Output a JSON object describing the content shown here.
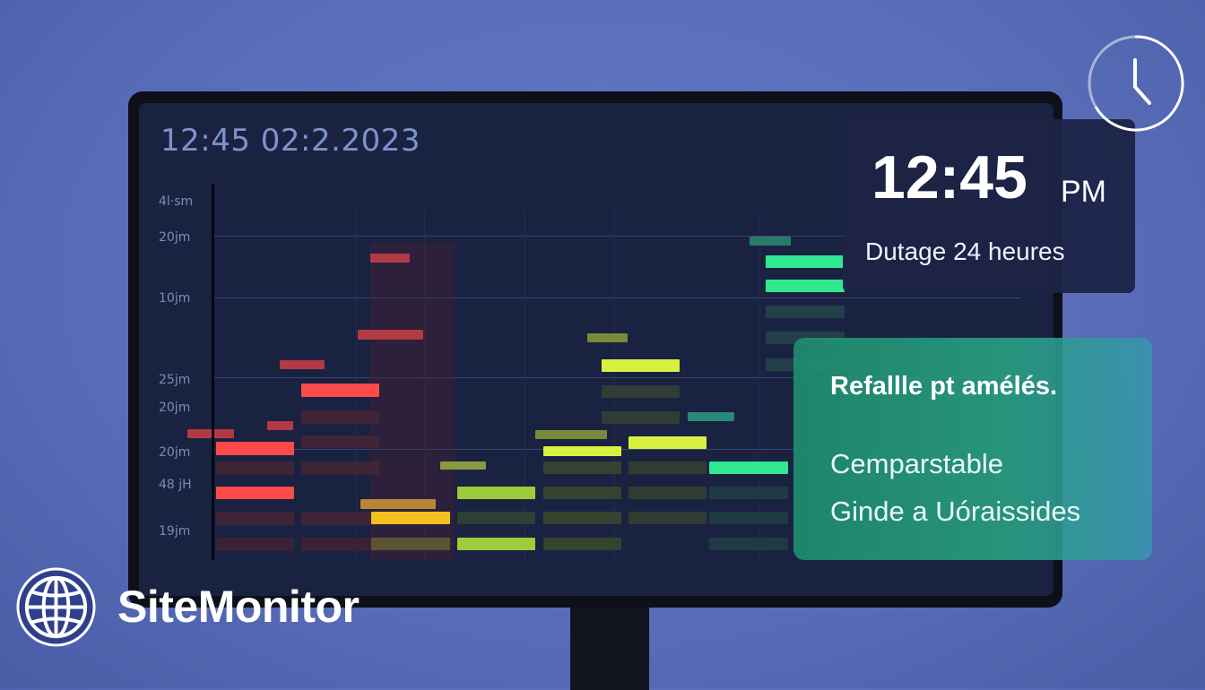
{
  "brand": {
    "name": "SiteMonitor",
    "logo_icon": "globe-icon"
  },
  "screen": {
    "title": "12:45  02:2.2023",
    "y_ticks": [
      "4l·sm",
      "20jm",
      "10jm",
      "25jm",
      "20jm",
      "20jm",
      "48 jH",
      "19jm"
    ]
  },
  "time_card": {
    "time": "12:45",
    "ampm": "PM",
    "subtitle": "Dutage 24 heures",
    "icon": "clock-icon"
  },
  "info_card": {
    "title": "Refallle pt amélés.",
    "line1": "Cemparstable",
    "line2": "Ginde a Uóraissides"
  },
  "colors": {
    "background": "#5a6ebc",
    "screen": "#1a2241",
    "red": "#ff4a4a",
    "yellow": "#f4c020",
    "lime": "#d8f040",
    "green": "#30e890",
    "info_card": "#1e8c6e"
  }
}
